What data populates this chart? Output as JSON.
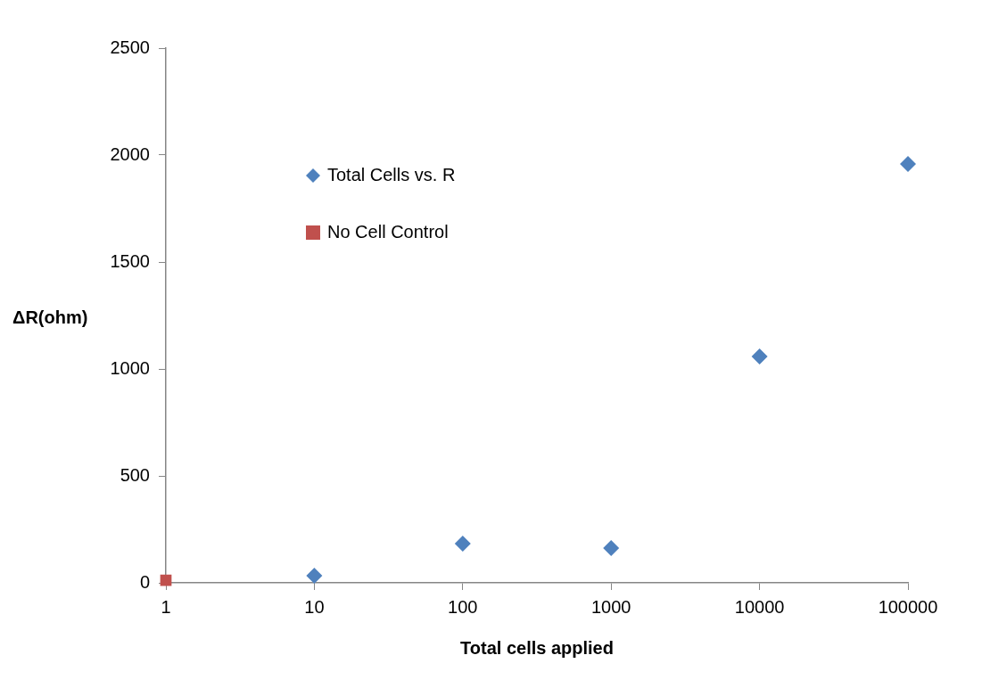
{
  "chart_data": {
    "type": "scatter",
    "xlabel": "Total cells applied",
    "ylabel": "ΔR(ohm)",
    "log": "x",
    "xlim": [
      1,
      100000
    ],
    "xticks": [
      1,
      10,
      100,
      1000,
      10000,
      100000
    ],
    "ylim": [
      0,
      2500
    ],
    "yticks": [
      0,
      500,
      1000,
      1500,
      2000,
      2500
    ],
    "grid": false,
    "legend": "top left",
    "series": [
      {
        "name": "Total Cells vs. R",
        "color": "#4f81bd",
        "marker": "diamond",
        "x": [
          10,
          100,
          1000,
          10000,
          100000
        ],
        "values": [
          33,
          183,
          163,
          1058,
          1958
        ]
      },
      {
        "name": "No Cell Control",
        "color": "#c0504d",
        "marker": "square",
        "x": [
          1
        ],
        "values": [
          12
        ]
      }
    ]
  }
}
